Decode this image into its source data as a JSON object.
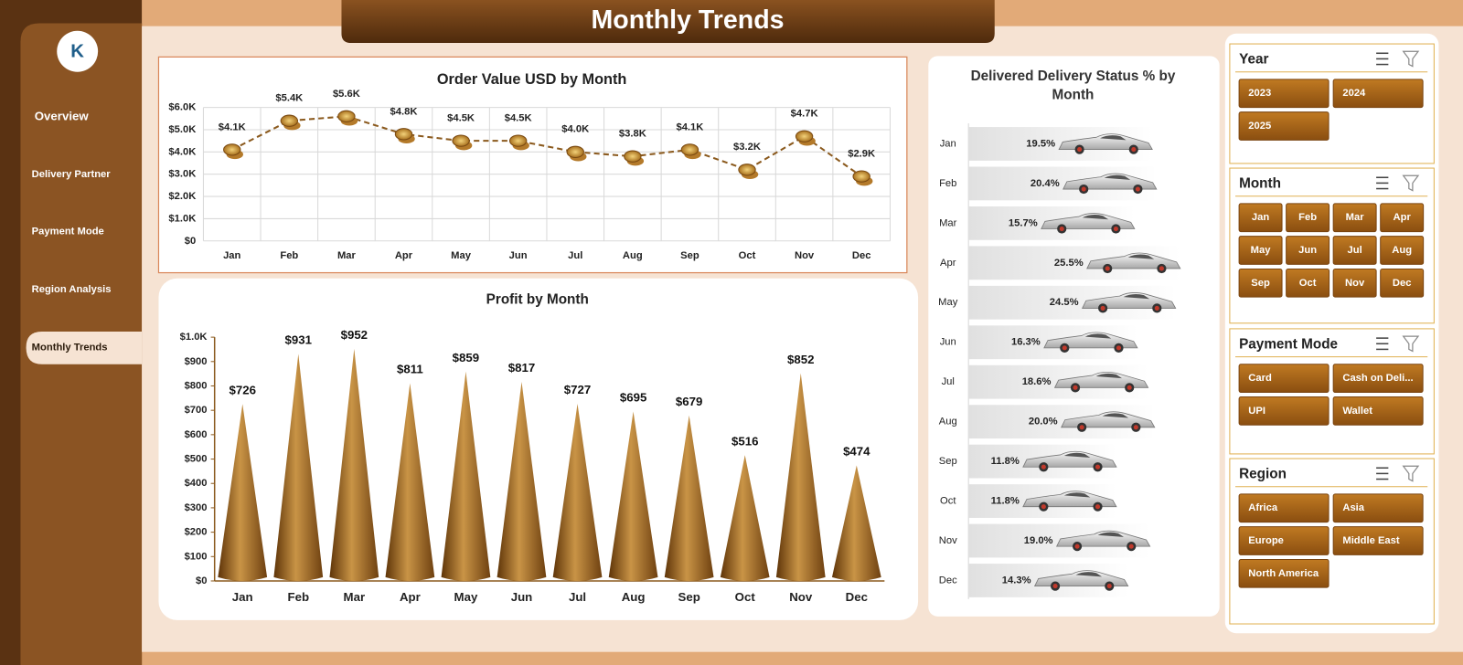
{
  "header": {
    "title": "Monthly Trends"
  },
  "nav": {
    "items": [
      "Overview",
      "Delivery Partner",
      "Payment Mode",
      "Region Analysis",
      "Monthly Trends"
    ]
  },
  "chart_data": [
    {
      "type": "line",
      "title": "Order Value USD by Month",
      "color": "#8B5A1E",
      "grid": true,
      "categories": [
        "Jan",
        "Feb",
        "Mar",
        "Apr",
        "May",
        "Jun",
        "Jul",
        "Aug",
        "Sep",
        "Oct",
        "Nov",
        "Dec"
      ],
      "values": [
        4100,
        5400,
        5600,
        4800,
        4500,
        4500,
        4000,
        3800,
        4100,
        3200,
        4700,
        2900
      ],
      "value_labels": [
        "$4.1K",
        "$5.4K",
        "$5.6K",
        "$4.8K",
        "$4.5K",
        "$4.5K",
        "$4.0K",
        "$3.8K",
        "$4.1K",
        "$3.2K",
        "$4.7K",
        "$2.9K"
      ],
      "ylim": [
        0,
        6000
      ],
      "yticks": [
        {
          "value": 0,
          "label": "$0"
        },
        {
          "value": 1000,
          "label": "$1.0K"
        },
        {
          "value": 2000,
          "label": "$2.0K"
        },
        {
          "value": 3000,
          "label": "$3.0K"
        },
        {
          "value": 4000,
          "label": "$4.0K"
        },
        {
          "value": 5000,
          "label": "$5.0K"
        },
        {
          "value": 6000,
          "label": "$6.0K"
        }
      ]
    },
    {
      "type": "bar",
      "title": "Profit by Month",
      "color": "#8B5A1E",
      "grid": false,
      "categories": [
        "Jan",
        "Feb",
        "Mar",
        "Apr",
        "May",
        "Jun",
        "Jul",
        "Aug",
        "Sep",
        "Oct",
        "Nov",
        "Dec"
      ],
      "values": [
        726,
        931,
        952,
        811,
        859,
        817,
        727,
        695,
        679,
        516,
        852,
        474
      ],
      "value_labels": [
        "$726",
        "$931",
        "$952",
        "$811",
        "$859",
        "$817",
        "$727",
        "$695",
        "$679",
        "$516",
        "$852",
        "$474"
      ],
      "ylim": [
        0,
        1000
      ],
      "yticks": [
        {
          "value": 0,
          "label": "$0"
        },
        {
          "value": 100,
          "label": "$100"
        },
        {
          "value": 200,
          "label": "$200"
        },
        {
          "value": 300,
          "label": "$300"
        },
        {
          "value": 400,
          "label": "$400"
        },
        {
          "value": 500,
          "label": "$500"
        },
        {
          "value": 600,
          "label": "$600"
        },
        {
          "value": 700,
          "label": "$700"
        },
        {
          "value": 800,
          "label": "$800"
        },
        {
          "value": 900,
          "label": "$900"
        },
        {
          "value": 1000,
          "label": "$1.0K"
        }
      ]
    },
    {
      "type": "bar",
      "orientation": "horizontal",
      "title": "Delivered Delivery Status % by Month",
      "color": "#E4E4E4",
      "categories": [
        "Jan",
        "Feb",
        "Mar",
        "Apr",
        "May",
        "Jun",
        "Jul",
        "Aug",
        "Sep",
        "Oct",
        "Nov",
        "Dec"
      ],
      "values": [
        19.5,
        20.4,
        15.7,
        25.5,
        24.5,
        16.3,
        18.6,
        20.0,
        11.8,
        11.8,
        19.0,
        14.3
      ],
      "value_labels": [
        "19.5%",
        "20.4%",
        "15.7%",
        "25.5%",
        "24.5%",
        "16.3%",
        "18.6%",
        "20.0%",
        "11.8%",
        "11.8%",
        "19.0%",
        "14.3%"
      ]
    }
  ],
  "slicers": [
    {
      "title": "Year",
      "options": [
        "2023",
        "2024",
        "2025"
      ]
    },
    {
      "title": "Month",
      "options": [
        "Jan",
        "Feb",
        "Mar",
        "Apr",
        "May",
        "Jun",
        "Jul",
        "Aug",
        "Sep",
        "Oct",
        "Nov",
        "Dec"
      ]
    },
    {
      "title": "Payment Mode",
      "options": [
        "Card",
        "Cash on Deli...",
        "UPI",
        "Wallet"
      ]
    },
    {
      "title": "Region",
      "options": [
        "Africa",
        "Asia",
        "Europe",
        "Middle East",
        "North America"
      ]
    }
  ]
}
